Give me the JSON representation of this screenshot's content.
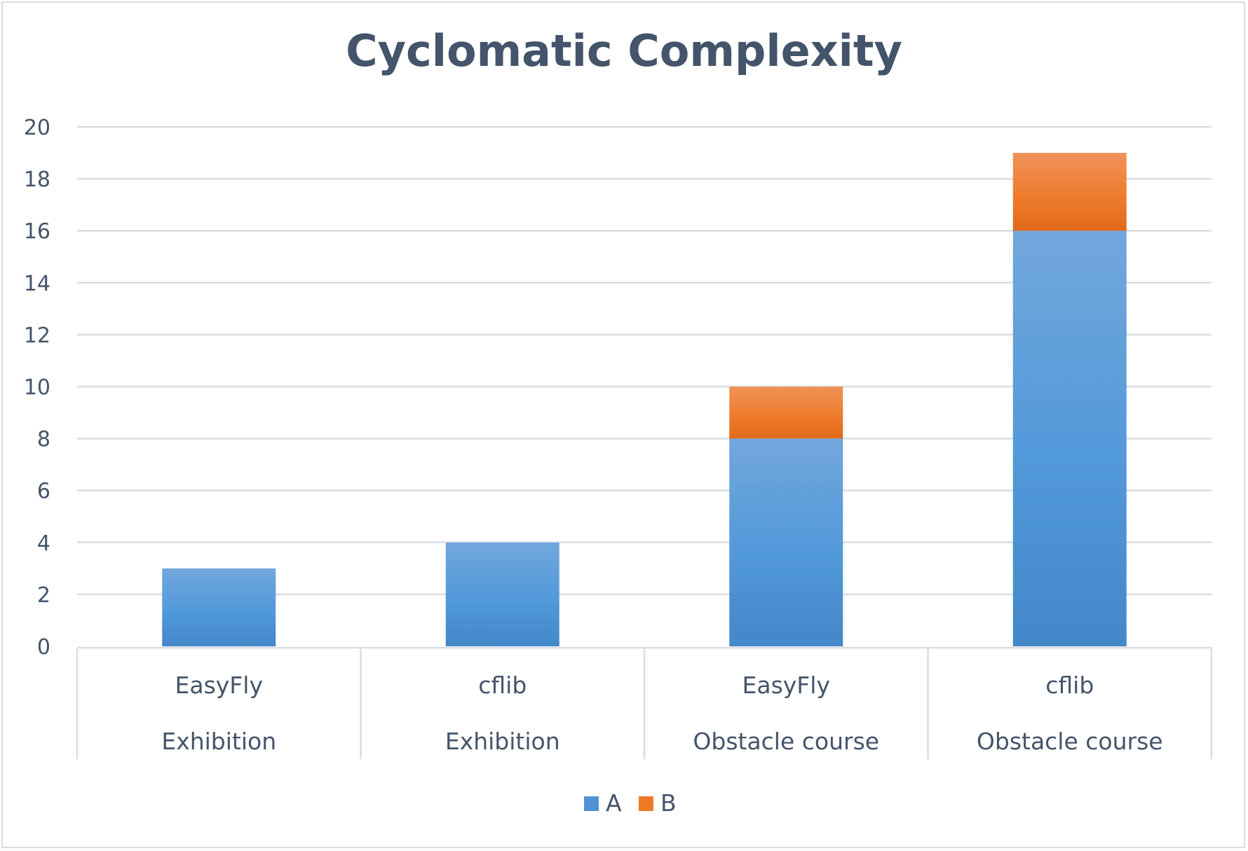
{
  "chart_data": {
    "type": "bar",
    "stacked": true,
    "title": "Cyclomatic Complexity",
    "categories": [
      {
        "label": "EasyFly",
        "group": "Exhibition"
      },
      {
        "label": "cflib",
        "group": "Exhibition"
      },
      {
        "label": "EasyFly",
        "group": "Obstacle course"
      },
      {
        "label": "cflib",
        "group": "Obstacle course"
      }
    ],
    "series": [
      {
        "name": "A",
        "values": [
          3,
          4,
          8,
          16
        ],
        "color": "#5b9bd5"
      },
      {
        "name": "B",
        "values": [
          0,
          0,
          2,
          3
        ],
        "color": "#ed7d31"
      }
    ],
    "ylim": [
      0,
      20
    ],
    "yticks": [
      0,
      2,
      4,
      6,
      8,
      10,
      12,
      14,
      16,
      18,
      20
    ],
    "grid": true,
    "legend_position": "bottom"
  }
}
